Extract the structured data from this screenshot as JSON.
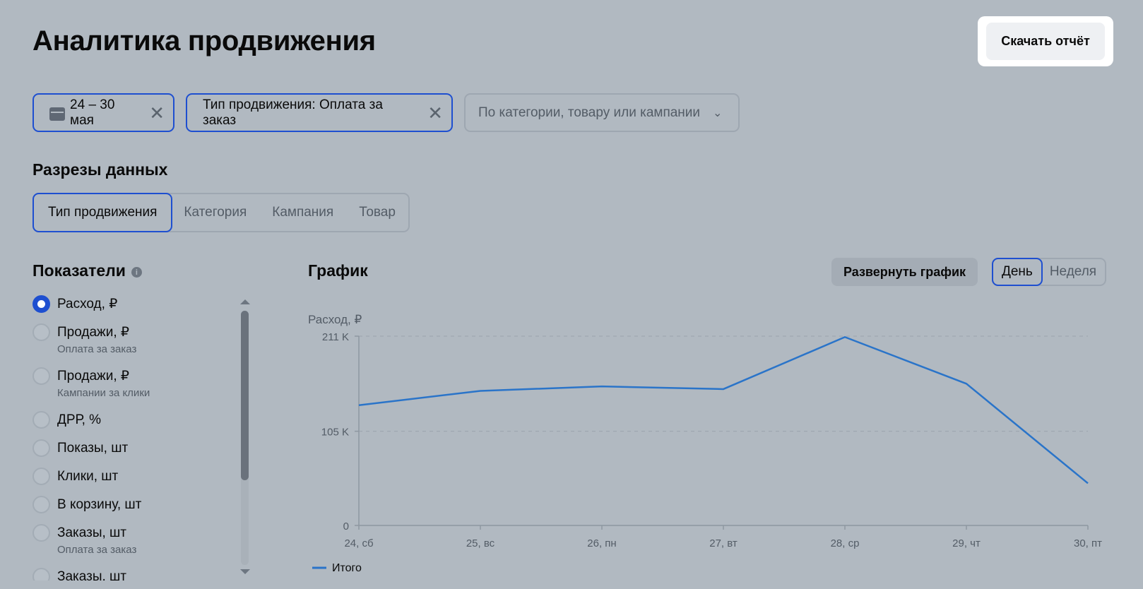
{
  "header": {
    "title": "Аналитика продвижения",
    "download_label": "Скачать отчёт"
  },
  "filters": {
    "date": {
      "label": "24 – 30 мая",
      "icon": "calendar-icon"
    },
    "promo_type": {
      "label": "Тип продвижения: Оплата за заказ"
    },
    "scope": {
      "placeholder": "По категории, товару или кампании"
    }
  },
  "slices": {
    "title": "Разрезы данных",
    "tabs": [
      {
        "label": "Тип продвижения",
        "active": true
      },
      {
        "label": "Категория",
        "active": false
      },
      {
        "label": "Кампания",
        "active": false
      },
      {
        "label": "Товар",
        "active": false
      }
    ]
  },
  "metrics": {
    "title": "Показатели",
    "items": [
      {
        "label": "Расход, ₽",
        "sub": "",
        "checked": true
      },
      {
        "label": "Продажи, ₽",
        "sub": "Оплата за заказ",
        "checked": false
      },
      {
        "label": "Продажи, ₽",
        "sub": "Кампании за клики",
        "checked": false
      },
      {
        "label": "ДРР, %",
        "sub": "",
        "checked": false
      },
      {
        "label": "Показы, шт",
        "sub": "",
        "checked": false
      },
      {
        "label": "Клики, шт",
        "sub": "",
        "checked": false
      },
      {
        "label": "В корзину, шт",
        "sub": "",
        "checked": false
      },
      {
        "label": "Заказы, шт",
        "sub": "Оплата за заказ",
        "checked": false
      },
      {
        "label": "Заказы, шт",
        "sub": "",
        "checked": false
      }
    ]
  },
  "chart_panel": {
    "title": "График",
    "expand_label": "Развернуть график",
    "period": [
      {
        "label": "День",
        "active": true
      },
      {
        "label": "Неделя",
        "active": false
      }
    ]
  },
  "chart_data": {
    "type": "line",
    "ylabel": "Расход, ₽",
    "categories": [
      "24, сб",
      "25, вс",
      "26, пн",
      "27, вт",
      "28, ср",
      "29, чт",
      "30, пт"
    ],
    "yticks": [
      {
        "value": 0,
        "label": "0"
      },
      {
        "value": 105,
        "label": "105 K"
      },
      {
        "value": 211,
        "label": "211 K"
      }
    ],
    "ylim": [
      0,
      211
    ],
    "grid": true,
    "series": [
      {
        "name": "Итого",
        "color": "#2a74c9",
        "values": [
          134,
          150,
          155,
          152,
          210,
          158,
          47
        ]
      }
    ],
    "legend": "bottom-left"
  }
}
